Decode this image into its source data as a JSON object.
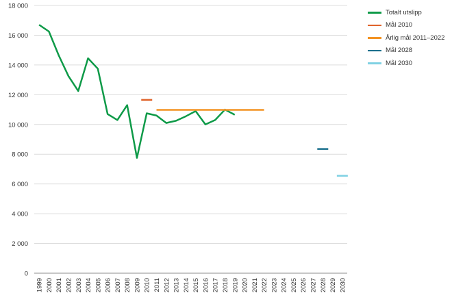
{
  "chart_data": {
    "type": "line",
    "x": [
      "1999",
      "2000",
      "2001",
      "2002",
      "2003",
      "2004",
      "2005",
      "2006",
      "2007",
      "2008",
      "2009",
      "2010",
      "2011",
      "2012",
      "2013",
      "2014",
      "2015",
      "2016",
      "2017",
      "2018",
      "2019",
      "2020",
      "2021",
      "2022",
      "2023",
      "2024",
      "2025",
      "2026",
      "2027",
      "2028",
      "2029",
      "2030"
    ],
    "ylim": [
      0,
      18000
    ],
    "yticks": [
      0,
      2000,
      4000,
      6000,
      8000,
      10000,
      12000,
      14000,
      16000,
      18000
    ],
    "ytick_labels": [
      "0",
      "2 000",
      "4 000",
      "6 000",
      "8 000",
      "10 000",
      "12 000",
      "14 000",
      "16 000",
      "18 000"
    ],
    "grid": "horizontal",
    "legend_position": "top-right",
    "title": "",
    "xlabel": "",
    "ylabel": "",
    "series": [
      {
        "name": "Totalt utslipp",
        "color": "#0e9a48",
        "points": [
          {
            "x": "1999",
            "y": 16700
          },
          {
            "x": "2000",
            "y": 16250
          },
          {
            "x": "2001",
            "y": 14650
          },
          {
            "x": "2002",
            "y": 13250
          },
          {
            "x": "2003",
            "y": 12250
          },
          {
            "x": "2004",
            "y": 14450
          },
          {
            "x": "2005",
            "y": 13750
          },
          {
            "x": "2006",
            "y": 10700
          },
          {
            "x": "2007",
            "y": 10300
          },
          {
            "x": "2008",
            "y": 11300
          },
          {
            "x": "2009",
            "y": 7750
          },
          {
            "x": "2010",
            "y": 10750
          },
          {
            "x": "2011",
            "y": 10600
          },
          {
            "x": "2012",
            "y": 10100
          },
          {
            "x": "2013",
            "y": 10250
          },
          {
            "x": "2014",
            "y": 10550
          },
          {
            "x": "2015",
            "y": 10900
          },
          {
            "x": "2016",
            "y": 10000
          },
          {
            "x": "2017",
            "y": 10300
          },
          {
            "x": "2018",
            "y": 11000
          },
          {
            "x": "2019",
            "y": 10650
          }
        ]
      },
      {
        "name": "Mål 2010",
        "color": "#e0632a",
        "points": [
          {
            "x": "2010",
            "y": 11650
          }
        ]
      },
      {
        "name": "Årlig mål 2011–2022",
        "color": "#f39324",
        "points": [
          {
            "x": "2011",
            "y": 10980
          },
          {
            "x": "2022",
            "y": 10980
          }
        ]
      },
      {
        "name": "Mål 2028",
        "color": "#1a6f8c",
        "points": [
          {
            "x": "2028",
            "y": 8350
          }
        ]
      },
      {
        "name": "Mål 2030",
        "color": "#7fd1e3",
        "points": [
          {
            "x": "2030",
            "y": 6550
          }
        ]
      }
    ]
  }
}
